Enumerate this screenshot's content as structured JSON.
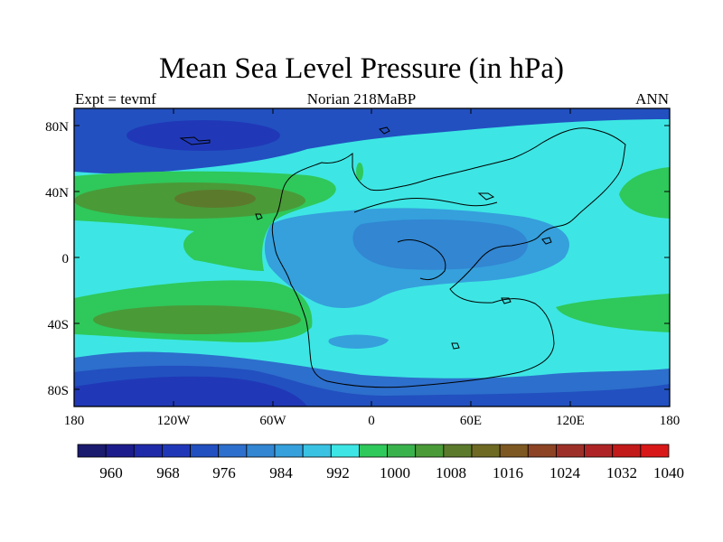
{
  "title": "Mean Sea Level Pressure (in hPa)",
  "subtitle_left": "Expt = tevmf",
  "subtitle_center": "Norian 218MaBP",
  "subtitle_right": "ANN",
  "lat_labels": [
    "80N",
    "40N",
    "0",
    "40S",
    "80S"
  ],
  "lon_labels": [
    "180",
    "120W",
    "60W",
    "0",
    "60E",
    "120E",
    "180"
  ],
  "colorbar": {
    "labels": [
      "960",
      "968",
      "976",
      "984",
      "992",
      "1000",
      "1008",
      "1016",
      "1024",
      "1032",
      "1040"
    ],
    "colors": [
      "#1a1a6e",
      "#1c1c8c",
      "#1f2aa8",
      "#2038b8",
      "#2250c0",
      "#2d6fcc",
      "#3286d2",
      "#35a0dc",
      "#3ac2e2",
      "#3de6e4",
      "#2fc85a",
      "#3ab24c",
      "#4a9a38",
      "#5c7a2c",
      "#6e6a24",
      "#7e5822",
      "#8c4424",
      "#9c3028",
      "#ae2426",
      "#c21a1a",
      "#d81818"
    ]
  },
  "colors": {
    "frame": "#000000",
    "c976": "#2038b8",
    "c984": "#2250c0",
    "c988": "#2d6fcc",
    "c992": "#3286d2",
    "c996": "#35a0dc",
    "c1000": "#3de6e4",
    "c1004": "#2fc85a",
    "c1012": "#4a9a38",
    "c1016": "#5c7a2c"
  }
}
